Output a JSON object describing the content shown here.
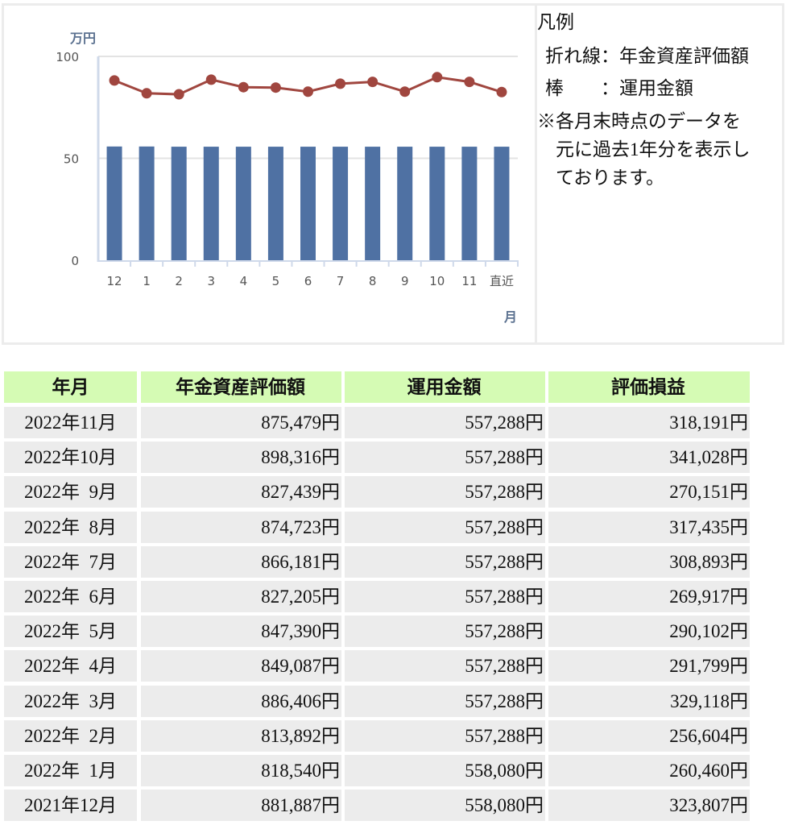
{
  "chart_data": {
    "type": "bar",
    "title": "",
    "xlabel": "月",
    "ylabel": "万円",
    "ylim": [
      0,
      100
    ],
    "yticks": [
      0,
      50,
      100
    ],
    "grid": true,
    "categories": [
      "12",
      "1",
      "2",
      "3",
      "4",
      "5",
      "6",
      "7",
      "8",
      "9",
      "10",
      "11",
      "直近"
    ],
    "series": [
      {
        "name": "年金資産評価額",
        "kind": "line",
        "color": "#a0463f",
        "values": [
          88.2,
          81.9,
          81.4,
          88.6,
          84.9,
          84.7,
          82.7,
          86.6,
          87.5,
          82.7,
          89.8,
          87.5,
          82.5
        ]
      },
      {
        "name": "運用金額",
        "kind": "bar",
        "color": "#4f71a3",
        "values": [
          55.8,
          55.8,
          55.7,
          55.7,
          55.7,
          55.7,
          55.7,
          55.7,
          55.7,
          55.7,
          55.7,
          55.7,
          55.7
        ]
      }
    ]
  },
  "chart": {
    "unit_label": "万円",
    "x_axis_label": "月",
    "y_ticks": [
      "100",
      "50",
      "0"
    ]
  },
  "legend": {
    "title": "凡例",
    "line_item": "折れ線：年金資産評価額",
    "bar_item": "棒　　：運用金額",
    "note_lines": [
      "※各月末時点のデータを",
      "　元に過去1年分を表示し",
      "　ております。"
    ]
  },
  "table": {
    "headers": [
      "年月",
      "年金資産評価額",
      "運用金額",
      "評価損益"
    ],
    "rows": [
      [
        "2022年11月",
        "875,479円",
        "557,288円",
        "318,191円"
      ],
      [
        "2022年10月",
        "898,316円",
        "557,288円",
        "341,028円"
      ],
      [
        "2022年  9月",
        "827,439円",
        "557,288円",
        "270,151円"
      ],
      [
        "2022年  8月",
        "874,723円",
        "557,288円",
        "317,435円"
      ],
      [
        "2022年  7月",
        "866,181円",
        "557,288円",
        "308,893円"
      ],
      [
        "2022年  6月",
        "827,205円",
        "557,288円",
        "269,917円"
      ],
      [
        "2022年  5月",
        "847,390円",
        "557,288円",
        "290,102円"
      ],
      [
        "2022年  4月",
        "849,087円",
        "557,288円",
        "291,799円"
      ],
      [
        "2022年  3月",
        "886,406円",
        "557,288円",
        "329,118円"
      ],
      [
        "2022年  2月",
        "813,892円",
        "557,288円",
        "256,604円"
      ],
      [
        "2022年  1月",
        "818,540円",
        "558,080円",
        "260,460円"
      ],
      [
        "2021年12月",
        "881,887円",
        "558,080円",
        "323,807円"
      ]
    ]
  }
}
